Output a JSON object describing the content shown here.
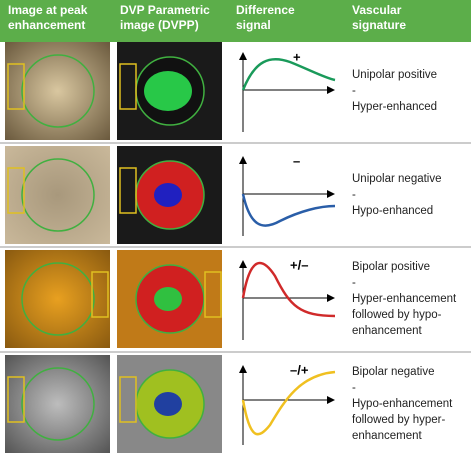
{
  "header": {
    "columns": [
      [
        "Image at peak",
        "enhancement"
      ],
      [
        "DVP Parametric",
        "image (DVPP)"
      ],
      [
        "Difference",
        "signal"
      ],
      [
        "Vascular",
        "signature"
      ]
    ]
  },
  "rows": [
    {
      "sign": "+",
      "signature": [
        "Unipolar positive",
        "-",
        "Hyper-enhanced"
      ]
    },
    {
      "sign": "–",
      "signature": [
        "Unipolar negative",
        "-",
        "Hypo-enhanced"
      ]
    },
    {
      "sign": "+/–",
      "signature": [
        "Bipolar positive",
        "-",
        "Hyper-enhancement",
        "followed by hypo-",
        "enhancement"
      ]
    },
    {
      "sign": "–/+",
      "signature": [
        "Bipolar negative",
        "-",
        "Hypo-enhancement",
        "followed by hyper-",
        "enhancement"
      ]
    }
  ]
}
